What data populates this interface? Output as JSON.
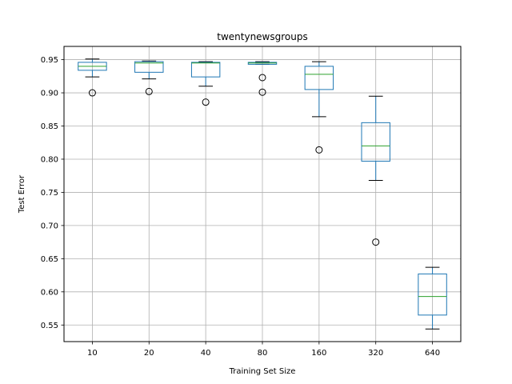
{
  "chart_data": {
    "type": "box",
    "title": "twentynewsgroups",
    "xlabel": "Training Set Size",
    "ylabel": "Test Error",
    "ylim": [
      0.525,
      0.97
    ],
    "yticks": [
      "0.55",
      "0.60",
      "0.65",
      "0.70",
      "0.75",
      "0.80",
      "0.85",
      "0.90",
      "0.95"
    ],
    "grid": true,
    "categories": [
      "10",
      "20",
      "40",
      "80",
      "160",
      "320",
      "640"
    ],
    "boxes": [
      {
        "whisker_low": 0.924,
        "q1": 0.934,
        "median": 0.94,
        "q3": 0.946,
        "whisker_high": 0.951,
        "outliers": [
          0.9
        ]
      },
      {
        "whisker_low": 0.921,
        "q1": 0.931,
        "median": 0.945,
        "q3": 0.947,
        "whisker_high": 0.948,
        "outliers": [
          0.902
        ]
      },
      {
        "whisker_low": 0.91,
        "q1": 0.924,
        "median": 0.945,
        "q3": 0.946,
        "whisker_high": 0.947,
        "outliers": [
          0.886
        ]
      },
      {
        "whisker_low": 0.943,
        "q1": 0.943,
        "median": 0.945,
        "q3": 0.946,
        "whisker_high": 0.947,
        "outliers": [
          0.923,
          0.901
        ]
      },
      {
        "whisker_low": 0.864,
        "q1": 0.905,
        "median": 0.928,
        "q3": 0.94,
        "whisker_high": 0.947,
        "outliers": [
          0.814
        ]
      },
      {
        "whisker_low": 0.768,
        "q1": 0.797,
        "median": 0.82,
        "q3": 0.855,
        "whisker_high": 0.895,
        "outliers": [
          0.675
        ]
      },
      {
        "whisker_low": 0.544,
        "q1": 0.565,
        "median": 0.593,
        "q3": 0.627,
        "whisker_high": 0.637,
        "outliers": []
      }
    ],
    "colors": {
      "box": "#1f77b4",
      "median": "#2ca02c",
      "whisker": "#1f77b4",
      "cap": "#000000",
      "grid": "#b0b0b0",
      "axes": "#000000"
    }
  }
}
